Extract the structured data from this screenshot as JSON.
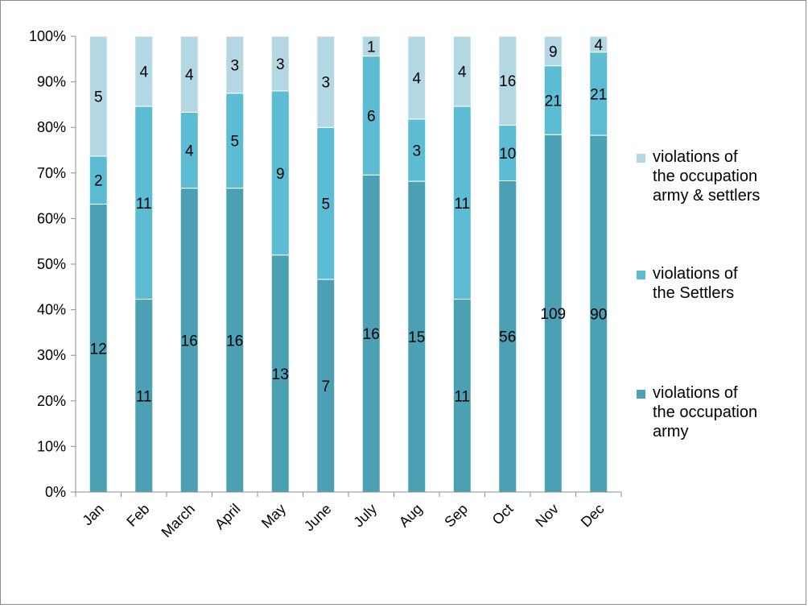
{
  "chart_data": {
    "type": "bar",
    "stacked": "percent",
    "categories": [
      "Jan",
      "Feb",
      "March",
      "April",
      "May",
      "June",
      "July",
      "Aug",
      "Sep",
      "Oct",
      "Nov",
      "Dec"
    ],
    "series": [
      {
        "name": "violations of the occupation army",
        "name_lines": [
          "violations of",
          "the occupation",
          "army"
        ],
        "color": "#4ba0b4",
        "values": [
          12,
          11,
          16,
          16,
          13,
          7,
          16,
          15,
          11,
          56,
          109,
          90
        ]
      },
      {
        "name": "violations of the Settlers",
        "name_lines": [
          "violations of",
          "the Settlers"
        ],
        "color": "#5bbcd3",
        "values": [
          2,
          11,
          4,
          5,
          9,
          5,
          6,
          3,
          11,
          10,
          21,
          21
        ]
      },
      {
        "name": "violations of the occupation army & settlers",
        "name_lines": [
          "violations of",
          "the occupation",
          "army & settlers"
        ],
        "color": "#b4d8e3",
        "values": [
          5,
          4,
          4,
          3,
          3,
          3,
          1,
          4,
          4,
          16,
          9,
          4
        ]
      }
    ],
    "yticks": [
      "0%",
      "10%",
      "20%",
      "30%",
      "40%",
      "50%",
      "60%",
      "70%",
      "80%",
      "90%",
      "100%"
    ],
    "ylim": [
      0,
      100
    ],
    "title": "",
    "xlabel": "",
    "ylabel": "",
    "legend_position": "right",
    "grid": false
  }
}
